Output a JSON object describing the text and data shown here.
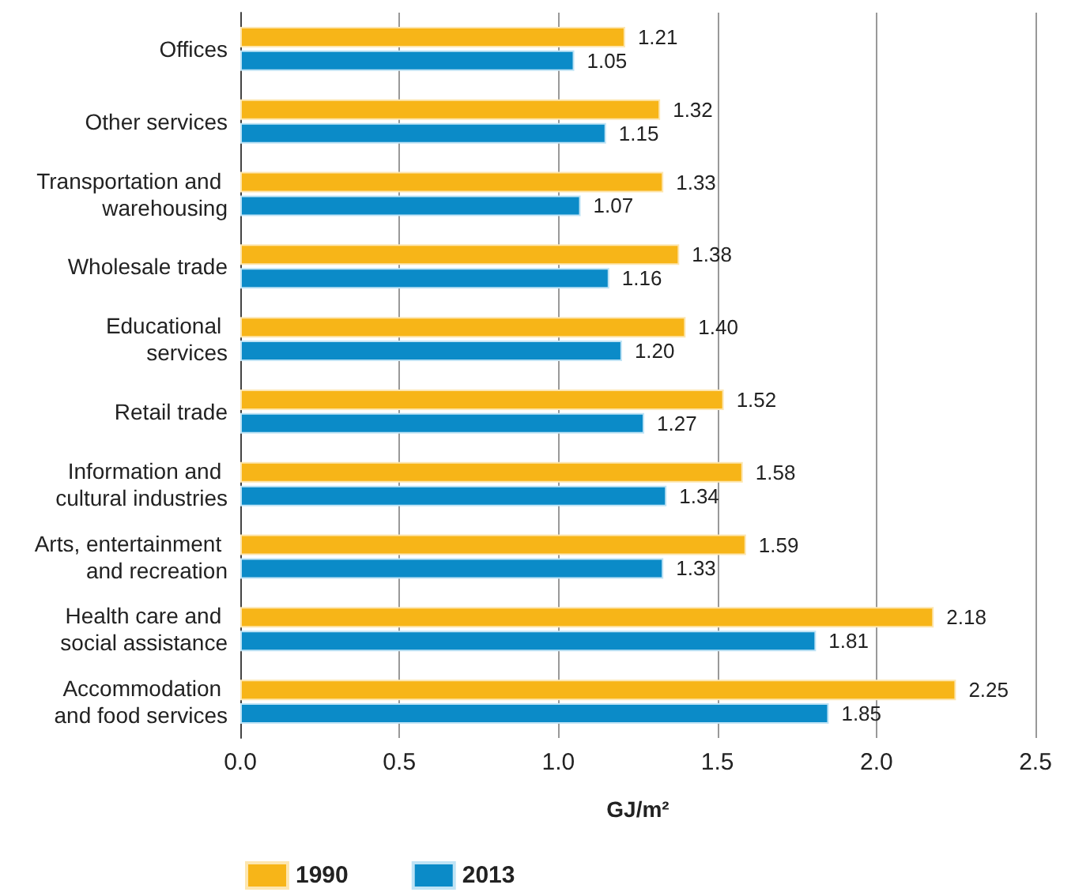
{
  "chart_data": {
    "type": "bar",
    "orientation": "horizontal",
    "xlabel": "GJ/m²",
    "categories": [
      "Offices",
      "Other services",
      "Transportation and warehousing",
      "Wholesale trade",
      "Educational services",
      "Retail trade",
      "Information and cultural industries",
      "Arts, entertainment and recreation",
      "Health care and social assistance",
      "Accommodation and food services"
    ],
    "series": [
      {
        "name": "1990",
        "color": "#f7b518",
        "values": [
          1.21,
          1.32,
          1.33,
          1.38,
          1.4,
          1.52,
          1.58,
          1.59,
          2.18,
          2.25
        ],
        "value_labels": [
          "1.21",
          "1.32",
          "1.33",
          "1.38",
          "1.40",
          "1.52",
          "1.58",
          "1.59",
          "2.18",
          "2.25"
        ]
      },
      {
        "name": "2013",
        "color": "#0b8bc8",
        "values": [
          1.05,
          1.15,
          1.07,
          1.16,
          1.2,
          1.27,
          1.34,
          1.33,
          1.81,
          1.85
        ],
        "value_labels": [
          "1.05",
          "1.15",
          "1.07",
          "1.16",
          "1.20",
          "1.27",
          "1.34",
          "1.33",
          "1.81",
          "1.85"
        ]
      }
    ],
    "xlim": [
      0,
      2.5
    ],
    "xticks": [
      {
        "value": 0,
        "label": "0.0"
      },
      {
        "value": 0.5,
        "label": "0.5"
      },
      {
        "value": 1,
        "label": "1.0"
      },
      {
        "value": 1.5,
        "label": "1.5"
      },
      {
        "value": 2,
        "label": "2.0"
      },
      {
        "value": 2.5,
        "label": "2.5"
      }
    ],
    "grid": "x",
    "legend": "bottom left"
  }
}
